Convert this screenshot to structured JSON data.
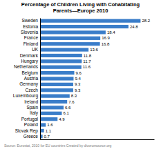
{
  "chart_data": {
    "type": "bar",
    "orientation": "horizontal",
    "title": "Percentage of Children Living with Cohabitating\nParents—Europe 2010",
    "categories": [
      "Sweden",
      "Estonia",
      "Slovenia",
      "France",
      "Finland",
      "UK",
      "Denmark",
      "Hungary",
      "Netherlands",
      "Belgium",
      "Austria",
      "Germany",
      "Czech",
      "Luxembourg",
      "Ireland",
      "Spain",
      "Italy",
      "Portugal",
      "Poland",
      "Slovak Rep",
      "Greece"
    ],
    "values": [
      28.2,
      24.8,
      18.4,
      16.9,
      16.8,
      13.6,
      11.8,
      11.7,
      11.6,
      9.6,
      9.4,
      9.3,
      9.3,
      8.3,
      7.6,
      6.6,
      6.1,
      4.9,
      1.6,
      1.1,
      0.7
    ],
    "color": "#3A7DC9",
    "xlim": [
      0,
      32
    ],
    "data_labels": true,
    "tick_labels": "y",
    "grid": false,
    "annotations": [
      "Source: Eurostat, 2010 for EU countries   Created by divorcesource.org"
    ]
  }
}
